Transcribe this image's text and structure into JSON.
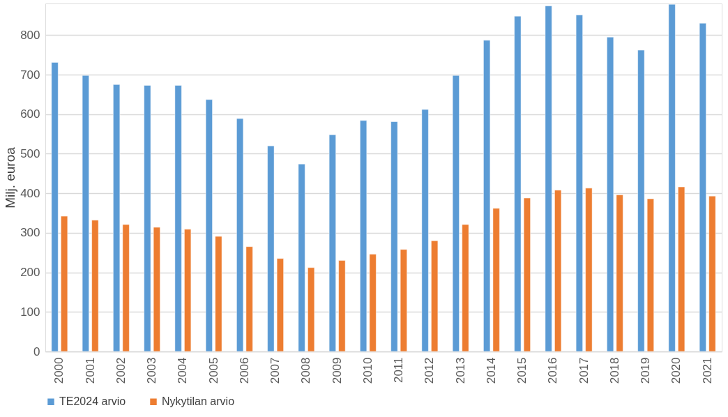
{
  "chart_data": {
    "type": "bar",
    "ylabel": "Milj. euroa",
    "categories": [
      "2000",
      "2001",
      "2002",
      "2003",
      "2004",
      "2005",
      "2006",
      "2007",
      "2008",
      "2009",
      "2010",
      "2011",
      "2012",
      "2013",
      "2014",
      "2015",
      "2016",
      "2017",
      "2018",
      "2019",
      "2020",
      "2021"
    ],
    "series": [
      {
        "name": "TE2024 arvio",
        "color": "#5b9bd5",
        "values": [
          731,
          698,
          675,
          673,
          673,
          637,
          589,
          520,
          474,
          548,
          584,
          581,
          612,
          698,
          787,
          848,
          874,
          851,
          795,
          762,
          878,
          830
        ]
      },
      {
        "name": "Nykytilan arvio",
        "color": "#ed7d31",
        "values": [
          342,
          332,
          321,
          314,
          309,
          291,
          265,
          235,
          212,
          230,
          246,
          258,
          280,
          321,
          362,
          388,
          408,
          413,
          396,
          386,
          416,
          393
        ]
      }
    ],
    "ylim": [
      0,
      880
    ],
    "yticks": [
      0,
      100,
      200,
      300,
      400,
      500,
      600,
      700,
      800
    ],
    "grid": "y",
    "legend": "bottom"
  }
}
